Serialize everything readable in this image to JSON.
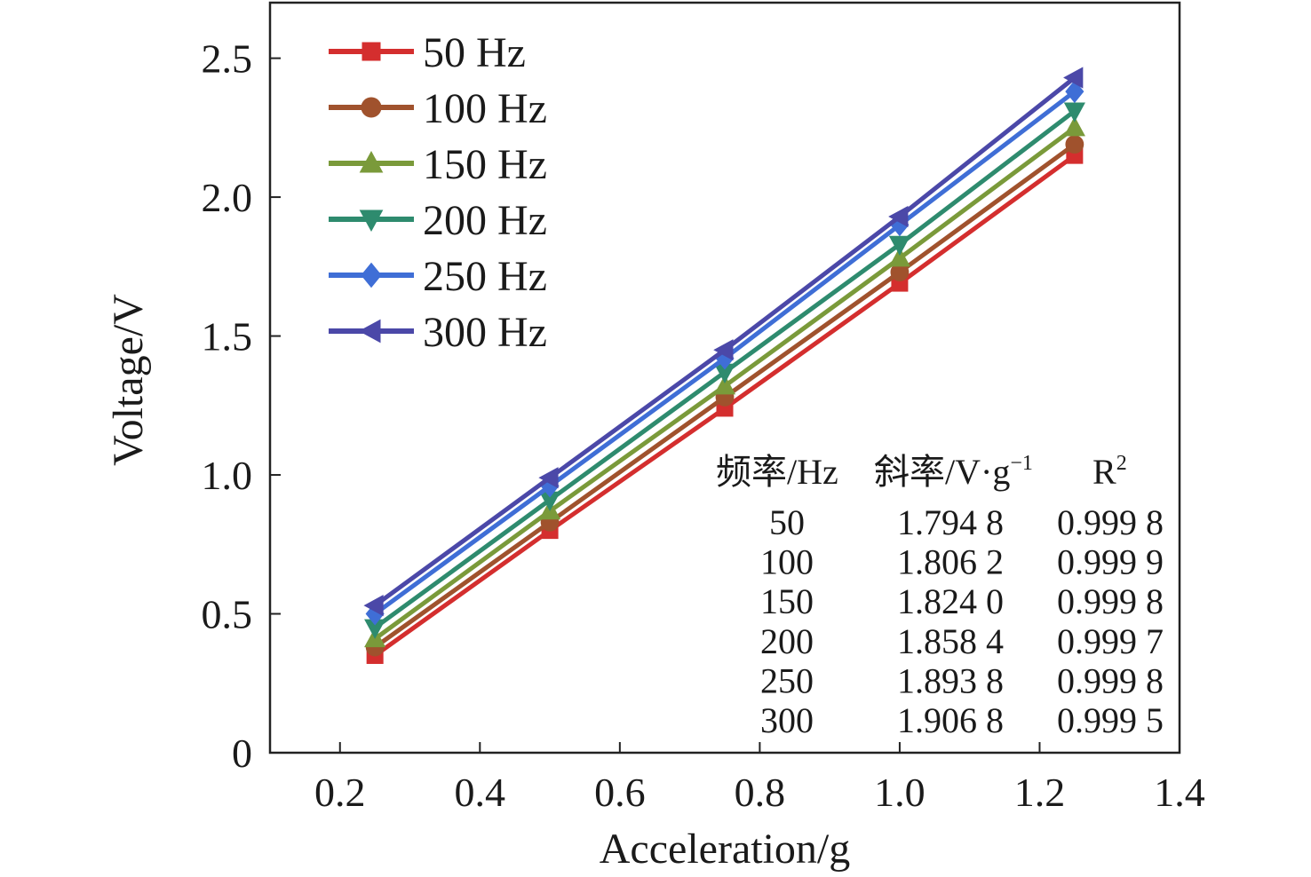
{
  "chart_data": {
    "type": "line",
    "xlabel": "Acceleration/g",
    "ylabel": "Voltage/V",
    "xlim": [
      0.1,
      1.4
    ],
    "ylim": [
      0,
      2.7
    ],
    "xticks": [
      0.2,
      0.4,
      0.6,
      0.8,
      1.0,
      1.2,
      1.4
    ],
    "xtick_labels": [
      "0.2",
      "0.4",
      "0.6",
      "0.8",
      "1.0",
      "1.2",
      "1.4"
    ],
    "yticks": [
      0,
      0.5,
      1.0,
      1.5,
      2.0,
      2.5
    ],
    "ytick_labels": [
      "0",
      "0.5",
      "1.0",
      "1.5",
      "2.0",
      "2.5"
    ],
    "grid": false,
    "legend_position": "top-left",
    "x": [
      0.25,
      0.5,
      0.75,
      1.0,
      1.25
    ],
    "series": [
      {
        "name": "50 Hz",
        "values": [
          0.35,
          0.8,
          1.24,
          1.69,
          2.15
        ],
        "color": "#d42e2e",
        "marker": "square"
      },
      {
        "name": "100 Hz",
        "values": [
          0.38,
          0.83,
          1.28,
          1.73,
          2.19
        ],
        "color": "#a0522d",
        "marker": "circle"
      },
      {
        "name": "150 Hz",
        "values": [
          0.41,
          0.87,
          1.32,
          1.78,
          2.25
        ],
        "color": "#7a9a3a",
        "marker": "triangle-up"
      },
      {
        "name": "200 Hz",
        "values": [
          0.45,
          0.91,
          1.37,
          1.83,
          2.31
        ],
        "color": "#2e8b6e",
        "marker": "triangle-down"
      },
      {
        "name": "250 Hz",
        "values": [
          0.5,
          0.96,
          1.42,
          1.9,
          2.38
        ],
        "color": "#3f6ed6",
        "marker": "diamond"
      },
      {
        "name": "300 Hz",
        "values": [
          0.53,
          0.99,
          1.45,
          1.93,
          2.43
        ],
        "color": "#4b48a8",
        "marker": "triangle-left"
      }
    ],
    "table": {
      "headers": [
        "频率/Hz",
        "斜率/V·g",
        "R"
      ],
      "slope_superscript": "−1",
      "r_superscript": "2",
      "rows": [
        [
          "50",
          "1.794 8",
          "0.999 8"
        ],
        [
          "100",
          "1.806 2",
          "0.999 9"
        ],
        [
          "150",
          "1.824 0",
          "0.999 8"
        ],
        [
          "200",
          "1.858 4",
          "0.999 7"
        ],
        [
          "250",
          "1.893 8",
          "0.999 8"
        ],
        [
          "300",
          "1.906 8",
          "0.999 5"
        ]
      ]
    }
  }
}
